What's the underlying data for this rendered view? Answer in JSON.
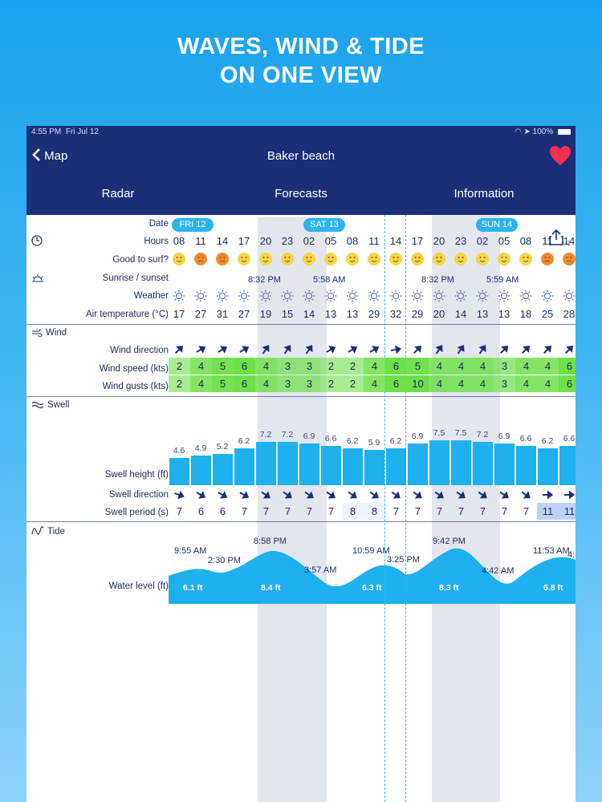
{
  "promo": {
    "line1": "WAVES, WIND & TIDE",
    "line2": "ON ONE VIEW"
  },
  "status": {
    "time": "4:55 PM",
    "date": "Fri Jul 12",
    "battery": "100%"
  },
  "nav": {
    "back_label": "Map",
    "title": "Baker beach"
  },
  "tabs": [
    "Radar",
    "Forecasts",
    "Information"
  ],
  "labels": {
    "date": "Date",
    "hours": "Hours",
    "good_to_surf": "Good to surf?",
    "sunrise_sunset": "Sunrise / sunset",
    "weather": "Weather",
    "air_temp": "Air temperature (°C)",
    "wind_section": "Wind",
    "wind_direction": "Wind direction",
    "wind_speed": "Wind speed (kts)",
    "wind_gusts": "Wind gusts (kts)",
    "swell_section": "Swell",
    "swell_height": "Swell height (ft)",
    "swell_direction": "Swell direction",
    "swell_period": "Swell period (s)",
    "tide_section": "Tide",
    "water_level": "Water level (ft)"
  },
  "days": [
    {
      "label": "FRI 12"
    },
    {
      "label": "SAT 13"
    },
    {
      "label": "SUN 14"
    }
  ],
  "hours": [
    "08",
    "11",
    "14",
    "17",
    "20",
    "23",
    "02",
    "05",
    "08",
    "11",
    "14",
    "17",
    "20",
    "23",
    "02",
    "05",
    "08",
    "11",
    "14"
  ],
  "surf": [
    "ok",
    "bad",
    "bad",
    "ok",
    "ok",
    "ok",
    "ok",
    "ok",
    "ok",
    "ok",
    "ok",
    "ok",
    "ok",
    "ok",
    "ok",
    "ok",
    "ok",
    "bad",
    "bad"
  ],
  "sun_events": [
    {
      "col": 4,
      "text": "8:32 PM"
    },
    {
      "col": 7,
      "text": "5:58 AM"
    },
    {
      "col": 12,
      "text": "8:32 PM"
    },
    {
      "col": 15,
      "text": "5:59 AM"
    }
  ],
  "air_temp": [
    "17",
    "27",
    "31",
    "27",
    "19",
    "15",
    "14",
    "13",
    "13",
    "29",
    "32",
    "29",
    "20",
    "14",
    "13",
    "13",
    "18",
    "25",
    "28"
  ],
  "wind_dir_deg": [
    45,
    60,
    60,
    60,
    35,
    35,
    35,
    60,
    60,
    60,
    80,
    45,
    35,
    35,
    35,
    45,
    45,
    45,
    45
  ],
  "wind_speed": [
    "2",
    "4",
    "5",
    "6",
    "4",
    "3",
    "3",
    "2",
    "2",
    "4",
    "6",
    "5",
    "4",
    "4",
    "4",
    "3",
    "4",
    "4",
    "6"
  ],
  "wind_gusts": [
    "2",
    "4",
    "5",
    "6",
    "4",
    "3",
    "3",
    "2",
    "2",
    "4",
    "6",
    "10",
    "4",
    "4",
    "4",
    "3",
    "4",
    "4",
    "6"
  ],
  "swell_height": [
    "4.6",
    "4.9",
    "5.2",
    "6.2",
    "7.2",
    "7.2",
    "6.9",
    "6.6",
    "6.2",
    "5.9",
    "6.2",
    "6.9",
    "7.5",
    "7.5",
    "7.2",
    "6.9",
    "6.6",
    "6.2",
    "6.6"
  ],
  "swell_dir_deg": [
    110,
    120,
    120,
    120,
    125,
    125,
    125,
    125,
    125,
    125,
    125,
    125,
    125,
    125,
    125,
    125,
    125,
    90,
    90
  ],
  "swell_period": [
    "7",
    "6",
    "6",
    "7",
    "7",
    "7",
    "7",
    "7",
    "8",
    "8",
    "7",
    "7",
    "7",
    "7",
    "7",
    "7",
    "7",
    "11",
    "11"
  ],
  "tide": {
    "times": [
      {
        "text": "9:55 AM"
      },
      {
        "text": "2:30 PM"
      },
      {
        "text": "8:58 PM"
      },
      {
        "text": "3:57 AM"
      },
      {
        "text": "10:59 AM"
      },
      {
        "text": "3:25 PM"
      },
      {
        "text": "9:42 PM"
      },
      {
        "text": "4:42 AM"
      },
      {
        "text": "11:53 AM"
      },
      {
        "text": "4:"
      }
    ],
    "highs": [
      "6.1 ft",
      "8.4 ft",
      "6.3 ft",
      "8.3 ft",
      "6.8 ft"
    ]
  },
  "colors": {
    "nav": "#1b2e78",
    "accent": "#2bb4ee",
    "heart": "#f0304e",
    "wind_green": "#6ee04a",
    "bar": "#1fb0ee"
  }
}
